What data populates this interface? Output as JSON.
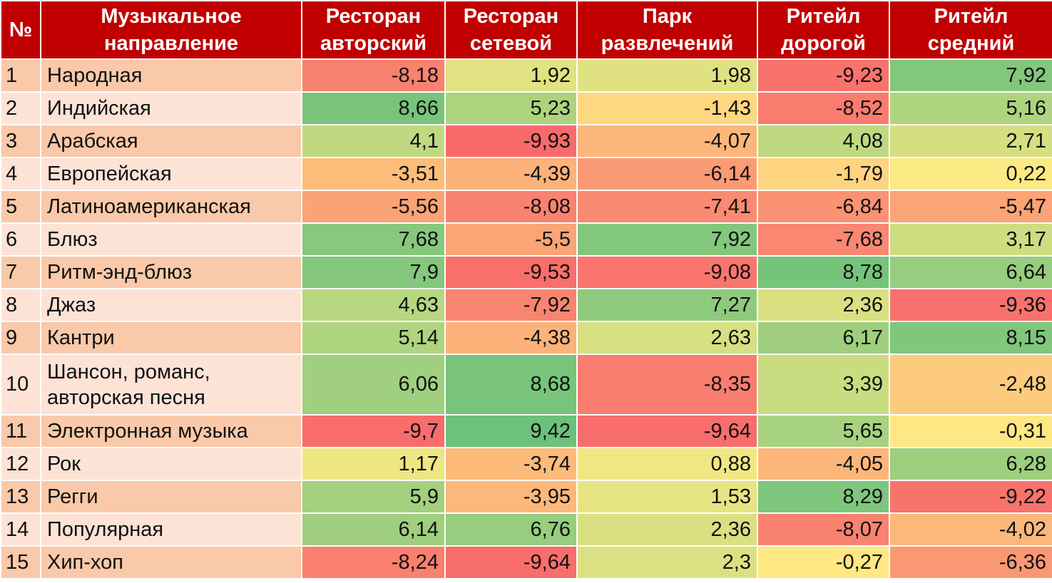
{
  "table": {
    "headers": [
      "№",
      "Музыкальное направление",
      "Ресторан авторский",
      "Ресторан сетевой",
      "Парк развлечений",
      "Ритейл дорогой",
      "Ритейл средний"
    ],
    "rows": [
      {
        "num": "1",
        "genre": "Народная",
        "values": [
          "-8,18",
          "1,92",
          "1,98",
          "-9,23",
          "7,92"
        ]
      },
      {
        "num": "2",
        "genre": "Индийская",
        "values": [
          "8,66",
          "5,23",
          "-1,43",
          "-8,52",
          "5,16"
        ]
      },
      {
        "num": "3",
        "genre": "Арабская",
        "values": [
          "4,1",
          "-9,93",
          "-4,07",
          "4,08",
          "2,71"
        ]
      },
      {
        "num": "4",
        "genre": "Европейская",
        "values": [
          "-3,51",
          "-4,39",
          "-6,14",
          "-1,79",
          "0,22"
        ]
      },
      {
        "num": "5",
        "genre": "Латиноамериканская",
        "values": [
          "-5,56",
          "-8,08",
          "-7,41",
          "-6,84",
          "-5,47"
        ]
      },
      {
        "num": "6",
        "genre": "Блюз",
        "values": [
          "7,68",
          "-5,5",
          "7,92",
          "-7,68",
          "3,17"
        ]
      },
      {
        "num": "7",
        "genre": "Ритм-энд-блюз",
        "values": [
          "7,9",
          "-9,53",
          "-9,08",
          "8,78",
          "6,64"
        ]
      },
      {
        "num": "8",
        "genre": "Джаз",
        "values": [
          "4,63",
          "-7,92",
          "7,27",
          "2,36",
          "-9,36"
        ]
      },
      {
        "num": "9",
        "genre": "Кантри",
        "values": [
          "5,14",
          "-4,38",
          "2,63",
          "6,17",
          "8,15"
        ]
      },
      {
        "num": "10",
        "genre": "Шансон, романс, авторская песня",
        "values": [
          "6,06",
          "8,68",
          "-8,35",
          "3,39",
          "-2,48"
        ]
      },
      {
        "num": "11",
        "genre": "Электронная музыка",
        "values": [
          "-9,7",
          "9,42",
          "-9,64",
          "5,65",
          "-0,31"
        ]
      },
      {
        "num": "12",
        "genre": "Рок",
        "values": [
          "1,17",
          "-3,74",
          "0,88",
          "-4,05",
          "6,28"
        ]
      },
      {
        "num": "13",
        "genre": "Регги",
        "values": [
          "5,9",
          "-3,95",
          "1,53",
          "8,29",
          "-9,22"
        ]
      },
      {
        "num": "14",
        "genre": "Популярная",
        "values": [
          "6,14",
          "6,76",
          "2,36",
          "-8,07",
          "-4,02"
        ]
      },
      {
        "num": "15",
        "genre": "Хип-хоп",
        "values": [
          "-8,24",
          "-9,64",
          "2,3",
          "-0,27",
          "-6,36"
        ]
      }
    ]
  },
  "colors": {
    "header_bg": "#c00000",
    "header_text": "#ffffff",
    "label_odd_bg": "#f9c9a9",
    "label_even_bg": "#fde3d5",
    "scale_low": "#f8696b",
    "scale_mid": "#ffeb84",
    "scale_high": "#63be7b"
  }
}
